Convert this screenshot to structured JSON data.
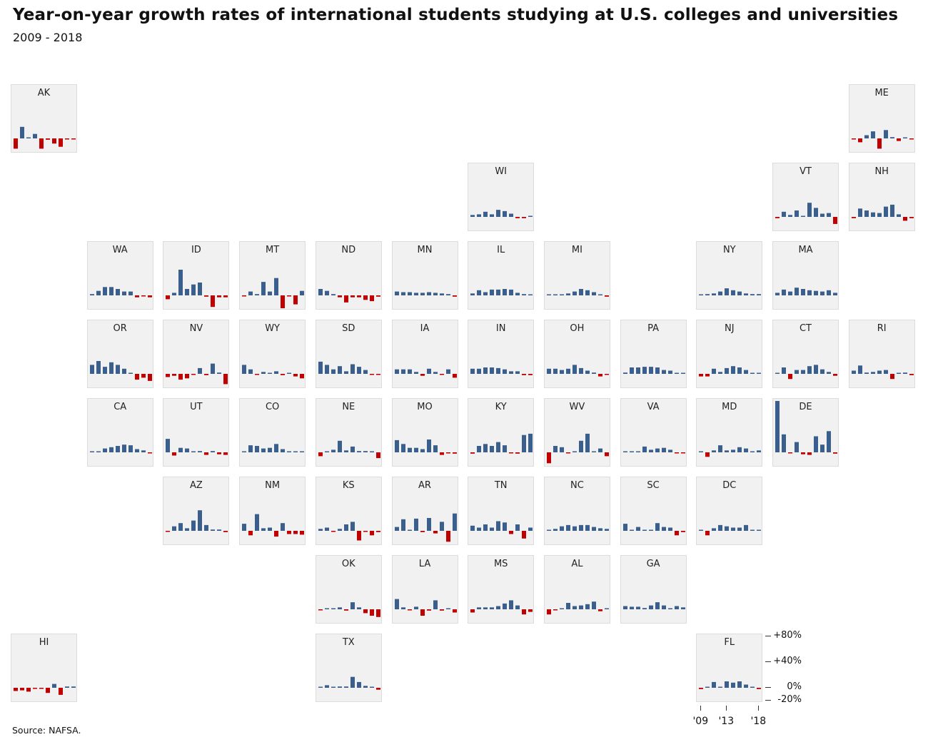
{
  "chart_data": {
    "type": "bar",
    "title": "Year-on-year growth rates of international students studying at U.S. colleges and universities",
    "subtitle": "2009 - 2018",
    "source": "Source: NAFSA.",
    "x": [
      2009,
      2010,
      2011,
      2012,
      2013,
      2014,
      2015,
      2016,
      2017,
      2018
    ],
    "x_tick_labels": [
      "'09",
      "'13",
      "'18"
    ],
    "y_tick_labels": [
      "+80%",
      "+40%",
      "0%",
      "-20%"
    ],
    "y_ticks": [
      80,
      40,
      0,
      -20
    ],
    "ylim": [
      -20,
      80
    ],
    "unit": "%",
    "colors": {
      "positive": "#3b5f8c",
      "negative": "#c00000",
      "tile": "#f1f1f1"
    },
    "series": [
      {
        "name": "AK",
        "values": [
          -16,
          18,
          0,
          7,
          -16,
          -2,
          -8,
          -13,
          -1,
          -1
        ]
      },
      {
        "name": "ME",
        "values": [
          -1,
          -6,
          5,
          11,
          -16,
          13,
          2,
          -4,
          0,
          -1
        ]
      },
      {
        "name": "WI",
        "values": [
          3,
          4,
          8,
          4,
          11,
          9,
          5,
          -2,
          -2,
          0
        ]
      },
      {
        "name": "VT",
        "values": [
          -2,
          8,
          3,
          10,
          1,
          22,
          14,
          5,
          6,
          -11
        ]
      },
      {
        "name": "NH",
        "values": [
          -2,
          13,
          10,
          7,
          6,
          16,
          19,
          4,
          -6,
          -2
        ]
      },
      {
        "name": "WA",
        "values": [
          2,
          7,
          13,
          13,
          10,
          6,
          6,
          -3,
          -1,
          -3
        ]
      },
      {
        "name": "ID",
        "values": [
          -6,
          4,
          40,
          10,
          17,
          20,
          -2,
          -18,
          -3,
          -3
        ]
      },
      {
        "name": "MT",
        "values": [
          -1,
          6,
          2,
          21,
          6,
          27,
          -20,
          -1,
          -14,
          7
        ]
      },
      {
        "name": "ND",
        "values": [
          10,
          7,
          2,
          -3,
          -11,
          -3,
          -3,
          -7,
          -9,
          -2
        ]
      },
      {
        "name": "MN",
        "values": [
          6,
          5,
          5,
          4,
          4,
          5,
          4,
          3,
          2,
          -2
        ]
      },
      {
        "name": "IL",
        "values": [
          3,
          8,
          5,
          9,
          9,
          10,
          9,
          4,
          2,
          0
        ]
      },
      {
        "name": "MI",
        "values": [
          1,
          1,
          1,
          3,
          6,
          10,
          8,
          5,
          1,
          -2
        ]
      },
      {
        "name": "NY",
        "values": [
          1,
          2,
          3,
          6,
          11,
          8,
          6,
          3,
          2,
          2
        ]
      },
      {
        "name": "MA",
        "values": [
          4,
          9,
          6,
          12,
          10,
          8,
          7,
          6,
          8,
          4
        ]
      },
      {
        "name": "OR",
        "values": [
          14,
          20,
          11,
          18,
          14,
          8,
          0,
          -9,
          -6,
          -11
        ]
      },
      {
        "name": "NV",
        "values": [
          -5,
          -3,
          -9,
          -7,
          -1,
          9,
          -2,
          16,
          2,
          -16
        ]
      },
      {
        "name": "WY",
        "values": [
          14,
          7,
          -1,
          3,
          0,
          4,
          -2,
          0,
          -4,
          -7
        ]
      },
      {
        "name": "SD",
        "values": [
          19,
          14,
          7,
          12,
          4,
          15,
          11,
          6,
          -1,
          -1
        ]
      },
      {
        "name": "IA",
        "values": [
          7,
          7,
          7,
          3,
          -3,
          8,
          3,
          -1,
          7,
          -6
        ]
      },
      {
        "name": "IN",
        "values": [
          8,
          8,
          10,
          10,
          9,
          7,
          4,
          4,
          -2,
          -2
        ]
      },
      {
        "name": "OH",
        "values": [
          8,
          8,
          6,
          8,
          14,
          9,
          5,
          2,
          -4,
          -1
        ]
      },
      {
        "name": "PA",
        "values": [
          2,
          10,
          10,
          11,
          11,
          10,
          6,
          5,
          1,
          0
        ]
      },
      {
        "name": "NJ",
        "values": [
          -4,
          -4,
          8,
          3,
          9,
          12,
          10,
          6,
          1,
          1
        ]
      },
      {
        "name": "CT",
        "values": [
          1,
          10,
          -8,
          6,
          6,
          12,
          14,
          7,
          3,
          -3
        ]
      },
      {
        "name": "RI",
        "values": [
          5,
          13,
          2,
          3,
          5,
          6,
          -8,
          0,
          2,
          -2
        ]
      },
      {
        "name": "CA",
        "values": [
          1,
          1,
          6,
          8,
          10,
          12,
          11,
          5,
          3,
          -1
        ]
      },
      {
        "name": "UT",
        "values": [
          21,
          -5,
          7,
          6,
          1,
          2,
          -4,
          2,
          -3,
          -4
        ]
      },
      {
        "name": "CO",
        "values": [
          1,
          11,
          10,
          6,
          7,
          13,
          5,
          1,
          0,
          1
        ]
      },
      {
        "name": "NE",
        "values": [
          -6,
          1,
          4,
          18,
          3,
          9,
          2,
          2,
          0,
          -9
        ]
      },
      {
        "name": "MO",
        "values": [
          19,
          13,
          7,
          7,
          5,
          20,
          11,
          -4,
          -1,
          -2
        ]
      },
      {
        "name": "KY",
        "values": [
          -2,
          10,
          13,
          10,
          16,
          11,
          -1,
          -2,
          27,
          29
        ]
      },
      {
        "name": "WV",
        "values": [
          -17,
          10,
          8,
          -1,
          1,
          18,
          29,
          0,
          6,
          -6
        ]
      },
      {
        "name": "VA",
        "values": [
          1,
          1,
          1,
          9,
          4,
          6,
          7,
          4,
          -1,
          -1
        ]
      },
      {
        "name": "MD",
        "values": [
          1,
          -7,
          3,
          11,
          3,
          4,
          8,
          6,
          0,
          3
        ]
      },
      {
        "name": "DE",
        "values": [
          80,
          28,
          -1,
          16,
          -3,
          -4,
          25,
          12,
          33,
          -2
        ]
      },
      {
        "name": "AZ",
        "values": [
          -1,
          7,
          12,
          4,
          16,
          32,
          9,
          2,
          2,
          -2
        ]
      },
      {
        "name": "NM",
        "values": [
          11,
          -7,
          26,
          4,
          5,
          -9,
          12,
          -5,
          -5,
          -6
        ]
      },
      {
        "name": "KS",
        "values": [
          3,
          5,
          -1,
          3,
          10,
          14,
          -15,
          -1,
          -7,
          -2
        ]
      },
      {
        "name": "AR",
        "values": [
          6,
          18,
          0,
          19,
          -2,
          20,
          -4,
          14,
          -17,
          27
        ]
      },
      {
        "name": "TN",
        "values": [
          8,
          5,
          10,
          5,
          15,
          13,
          -5,
          10,
          -12,
          5
        ]
      },
      {
        "name": "NC",
        "values": [
          0,
          3,
          7,
          9,
          7,
          9,
          9,
          6,
          4,
          3
        ]
      },
      {
        "name": "SC",
        "values": [
          11,
          1,
          6,
          1,
          1,
          12,
          6,
          5,
          -7,
          -2
        ]
      },
      {
        "name": "DC",
        "values": [
          0,
          -7,
          4,
          9,
          7,
          5,
          5,
          9,
          0,
          1
        ]
      },
      {
        "name": "OK",
        "values": [
          -1,
          1,
          0,
          3,
          -2,
          11,
          3,
          -6,
          -10,
          -12
        ]
      },
      {
        "name": "LA",
        "values": [
          16,
          3,
          -1,
          4,
          -10,
          -2,
          14,
          -2,
          0,
          -5
        ]
      },
      {
        "name": "MS",
        "values": [
          -5,
          3,
          3,
          3,
          5,
          9,
          14,
          6,
          -8,
          -4
        ]
      },
      {
        "name": "AL",
        "values": [
          -8,
          -1,
          1,
          10,
          5,
          6,
          8,
          12,
          -3,
          0
        ]
      },
      {
        "name": "GA",
        "values": [
          5,
          4,
          4,
          2,
          6,
          11,
          6,
          1,
          5,
          3
        ]
      },
      {
        "name": "HI",
        "values": [
          -5,
          -4,
          -6,
          -1,
          -1,
          -8,
          6,
          -11,
          2,
          2
        ]
      },
      {
        "name": "TX",
        "values": [
          1,
          4,
          0,
          2,
          2,
          17,
          9,
          3,
          0,
          -3
        ]
      },
      {
        "name": "FL",
        "values": [
          -2,
          0,
          9,
          0,
          10,
          8,
          10,
          5,
          1,
          -2
        ]
      }
    ]
  }
}
